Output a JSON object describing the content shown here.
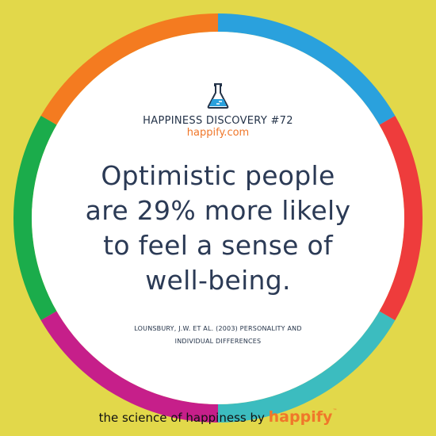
{
  "discovery": {
    "title": "HAPPINESS DISCOVERY #72",
    "site": "happify.com"
  },
  "quote": {
    "lines": [
      "Optimistic people",
      "are 29% more likely",
      "to feel a sense of",
      "well-being."
    ]
  },
  "citation": {
    "lines": [
      "LOUNSBURY, J.W. ET AL. (2003) PERSONALITY AND",
      "INDIVIDUAL DIFFERENCES"
    ]
  },
  "footer": {
    "tagline": "the science of happiness by",
    "brand": "happify",
    "trademark": "™"
  },
  "colors": {
    "background": "#e2d84a",
    "ring": [
      "#2aa1dd",
      "#ee3c3c",
      "#3cbcbf",
      "#c61f8a",
      "#1bac4b",
      "#f47b20"
    ],
    "accent": "#f0772a",
    "text": "#2b3a55"
  }
}
